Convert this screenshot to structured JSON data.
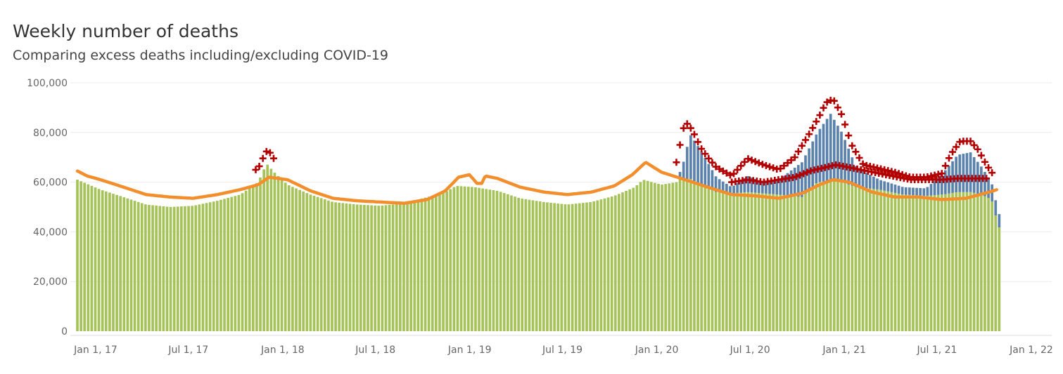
{
  "chart_data": {
    "type": "bar",
    "title": "Weekly number of deaths",
    "subtitle": "Comparing excess deaths including/excluding COVID-19",
    "xlabel": "",
    "ylabel": "",
    "ylim": [
      0,
      100000
    ],
    "y_ticks": [
      "0",
      "20,000",
      "40,000",
      "60,000",
      "80,000",
      "100,000"
    ],
    "y_tick_values": [
      0,
      20000,
      40000,
      60000,
      80000,
      100000
    ],
    "x_tick_labels": [
      "Jan 1, 17",
      "Jul 1, 17",
      "Jan 1, 18",
      "Jul 1, 18",
      "Jan 1, 19",
      "Jul 1, 19",
      "Jan 1, 20",
      "Jul 1, 20",
      "Jan 1, 21",
      "Jul 1, 21",
      "Jan 1, 22"
    ],
    "x_tick_dates": [
      "2017-01-01",
      "2017-07-01",
      "2018-01-01",
      "2018-07-01",
      "2019-01-01",
      "2019-07-01",
      "2020-01-01",
      "2020-07-01",
      "2021-01-01",
      "2021-07-01",
      "2022-01-01"
    ],
    "x_range": [
      "2017-01-01",
      "2022-01-01"
    ],
    "grid": true,
    "series_encoding": {
      "non_covid_deaths": "green bars",
      "covid_deaths": "blue bars stacked on top",
      "expected_deaths": "orange line",
      "excess_threshold": "red plus markers"
    },
    "colors": {
      "non_covid": "#a6c35a",
      "covid": "#5b82ad",
      "expected": "#f28e2b",
      "threshold": "#b30000",
      "gridline": "#ececec",
      "tick_text": "#666666"
    },
    "anchors": {
      "total_deaths": [
        [
          "2017-01-01",
          61000
        ],
        [
          "2017-02-15",
          57000
        ],
        [
          "2017-04-01",
          54000
        ],
        [
          "2017-05-15",
          51000
        ],
        [
          "2017-07-01",
          50000
        ],
        [
          "2017-08-15",
          50500
        ],
        [
          "2017-10-01",
          52500
        ],
        [
          "2017-11-15",
          55000
        ],
        [
          "2017-12-20",
          60000
        ],
        [
          "2018-01-05",
          67500
        ],
        [
          "2018-01-20",
          64000
        ],
        [
          "2018-02-15",
          59000
        ],
        [
          "2018-04-01",
          55000
        ],
        [
          "2018-05-15",
          52000
        ],
        [
          "2018-07-01",
          51000
        ],
        [
          "2018-08-15",
          50500
        ],
        [
          "2018-10-01",
          51500
        ],
        [
          "2018-11-15",
          54000
        ],
        [
          "2018-12-20",
          56000
        ],
        [
          "2019-01-10",
          58500
        ],
        [
          "2019-02-15",
          58000
        ],
        [
          "2019-04-01",
          56500
        ],
        [
          "2019-05-15",
          53500
        ],
        [
          "2019-07-01",
          52000
        ],
        [
          "2019-08-15",
          51000
        ],
        [
          "2019-10-01",
          52000
        ],
        [
          "2019-11-15",
          54500
        ],
        [
          "2019-12-25",
          58000
        ],
        [
          "2020-01-10",
          61000
        ],
        [
          "2020-02-15",
          59000
        ],
        [
          "2020-03-15",
          60000
        ],
        [
          "2020-04-01",
          70000
        ],
        [
          "2020-04-10",
          79500
        ],
        [
          "2020-05-01",
          73000
        ],
        [
          "2020-06-01",
          62000
        ],
        [
          "2020-07-01",
          58000
        ],
        [
          "2020-08-01",
          62500
        ],
        [
          "2020-09-01",
          60000
        ],
        [
          "2020-10-01",
          61000
        ],
        [
          "2020-11-15",
          68000
        ],
        [
          "2020-12-15",
          80000
        ],
        [
          "2021-01-10",
          87500
        ],
        [
          "2021-02-01",
          80000
        ],
        [
          "2021-03-01",
          66000
        ],
        [
          "2021-04-15",
          61000
        ],
        [
          "2021-06-01",
          58000
        ],
        [
          "2021-07-15",
          57500
        ],
        [
          "2021-08-15",
          63000
        ],
        [
          "2021-09-15",
          71000
        ],
        [
          "2021-10-10",
          72000
        ],
        [
          "2021-11-01",
          66000
        ],
        [
          "2021-11-20",
          60000
        ],
        [
          "2021-12-01",
          50000
        ],
        [
          "2021-12-08",
          45000
        ]
      ],
      "covid_deaths": [
        [
          "2020-03-15",
          0
        ],
        [
          "2020-03-25",
          3000
        ],
        [
          "2020-04-10",
          18000
        ],
        [
          "2020-05-01",
          14000
        ],
        [
          "2020-06-01",
          6000
        ],
        [
          "2020-07-01",
          2500
        ],
        [
          "2020-08-01",
          6500
        ],
        [
          "2020-09-01",
          4500
        ],
        [
          "2020-10-01",
          6000
        ],
        [
          "2020-11-15",
          14000
        ],
        [
          "2020-12-15",
          20000
        ],
        [
          "2021-01-10",
          27000
        ],
        [
          "2021-02-01",
          20000
        ],
        [
          "2021-03-01",
          8000
        ],
        [
          "2021-04-15",
          4000
        ],
        [
          "2021-06-01",
          3000
        ],
        [
          "2021-07-15",
          3000
        ],
        [
          "2021-08-15",
          8000
        ],
        [
          "2021-09-15",
          15000
        ],
        [
          "2021-10-10",
          16000
        ],
        [
          "2021-11-01",
          11000
        ],
        [
          "2021-11-20",
          7000
        ],
        [
          "2021-12-08",
          5000
        ]
      ],
      "expected_deaths": [
        [
          "2017-01-01",
          64500
        ],
        [
          "2017-01-20",
          62500
        ],
        [
          "2017-02-15",
          61000
        ],
        [
          "2017-04-01",
          58000
        ],
        [
          "2017-05-15",
          55000
        ],
        [
          "2017-07-01",
          54000
        ],
        [
          "2017-08-15",
          53500
        ],
        [
          "2017-10-01",
          55000
        ],
        [
          "2017-11-15",
          57000
        ],
        [
          "2017-12-20",
          59000
        ],
        [
          "2018-01-10",
          62000
        ],
        [
          "2018-02-15",
          61000
        ],
        [
          "2018-04-01",
          56500
        ],
        [
          "2018-05-15",
          53500
        ],
        [
          "2018-07-01",
          52500
        ],
        [
          "2018-08-15",
          52000
        ],
        [
          "2018-10-01",
          51500
        ],
        [
          "2018-11-15",
          53000
        ],
        [
          "2018-12-20",
          56500
        ],
        [
          "2019-01-15",
          62000
        ],
        [
          "2019-02-05",
          63000
        ],
        [
          "2019-02-20",
          59500
        ],
        [
          "2019-03-01",
          59500
        ],
        [
          "2019-03-08",
          62500
        ],
        [
          "2019-04-01",
          61500
        ],
        [
          "2019-05-15",
          58000
        ],
        [
          "2019-07-01",
          56000
        ],
        [
          "2019-08-15",
          55000
        ],
        [
          "2019-10-01",
          56000
        ],
        [
          "2019-11-15",
          58500
        ],
        [
          "2019-12-20",
          63000
        ],
        [
          "2020-01-15",
          68000
        ],
        [
          "2020-02-15",
          64000
        ],
        [
          "2020-04-01",
          61000
        ],
        [
          "2020-05-15",
          58000
        ],
        [
          "2020-07-01",
          55000
        ],
        [
          "2020-08-15",
          54500
        ],
        [
          "2020-10-01",
          53500
        ],
        [
          "2020-11-15",
          55500
        ],
        [
          "2020-12-20",
          59000
        ],
        [
          "2021-01-15",
          61000
        ],
        [
          "2021-02-15",
          60000
        ],
        [
          "2021-04-01",
          56000
        ],
        [
          "2021-05-15",
          54000
        ],
        [
          "2021-07-01",
          54000
        ],
        [
          "2021-08-15",
          53000
        ],
        [
          "2021-10-01",
          53500
        ],
        [
          "2021-11-15",
          56000
        ],
        [
          "2021-12-01",
          57000
        ]
      ],
      "excess_threshold": [
        [
          "2017-12-15",
          65000
        ],
        [
          "2017-12-25",
          67000
        ],
        [
          "2018-01-01",
          71500
        ],
        [
          "2018-01-08",
          73000
        ],
        [
          "2018-01-15",
          71000
        ],
        [
          "2018-01-22",
          68500
        ],
        [
          "2020-03-15",
          68000
        ],
        [
          "2020-03-25",
          78000
        ],
        [
          "2020-04-01",
          84500
        ],
        [
          "2020-04-15",
          81000
        ],
        [
          "2020-05-01",
          74000
        ],
        [
          "2020-05-15",
          70000
        ],
        [
          "2020-06-01",
          66000
        ],
        [
          "2020-07-01",
          62500
        ],
        [
          "2020-08-01",
          69500
        ],
        [
          "2020-09-01",
          67000
        ],
        [
          "2020-10-01",
          65000
        ],
        [
          "2020-11-01",
          70000
        ],
        [
          "2020-12-01",
          80000
        ],
        [
          "2020-12-20",
          87000
        ],
        [
          "2021-01-01",
          92000
        ],
        [
          "2021-01-15",
          93500
        ],
        [
          "2021-02-01",
          87000
        ],
        [
          "2021-02-20",
          75000
        ],
        [
          "2021-03-15",
          67000
        ],
        [
          "2021-04-15",
          65500
        ],
        [
          "2021-05-15",
          64000
        ],
        [
          "2021-06-15",
          62000
        ],
        [
          "2021-07-15",
          62000
        ],
        [
          "2021-08-15",
          63500
        ],
        [
          "2021-09-01",
          71000
        ],
        [
          "2021-09-20",
          76500
        ],
        [
          "2021-10-10",
          76500
        ],
        [
          "2021-10-25",
          73000
        ],
        [
          "2021-11-10",
          67000
        ],
        [
          "2021-11-22",
          63500
        ]
      ],
      "excess_threshold_lower": [
        [
          "2020-07-01",
          60000
        ],
        [
          "2020-08-01",
          61000
        ],
        [
          "2020-09-01",
          60000
        ],
        [
          "2020-10-01",
          61000
        ],
        [
          "2020-11-01",
          62000
        ],
        [
          "2020-12-01",
          64500
        ],
        [
          "2021-01-01",
          66000
        ],
        [
          "2021-01-20",
          67000
        ],
        [
          "2021-06-15",
          61000
        ],
        [
          "2021-07-15",
          61000
        ],
        [
          "2021-08-15",
          61000
        ],
        [
          "2021-09-15",
          61500
        ],
        [
          "2021-10-15",
          61500
        ],
        [
          "2021-11-15",
          61500
        ]
      ]
    }
  }
}
